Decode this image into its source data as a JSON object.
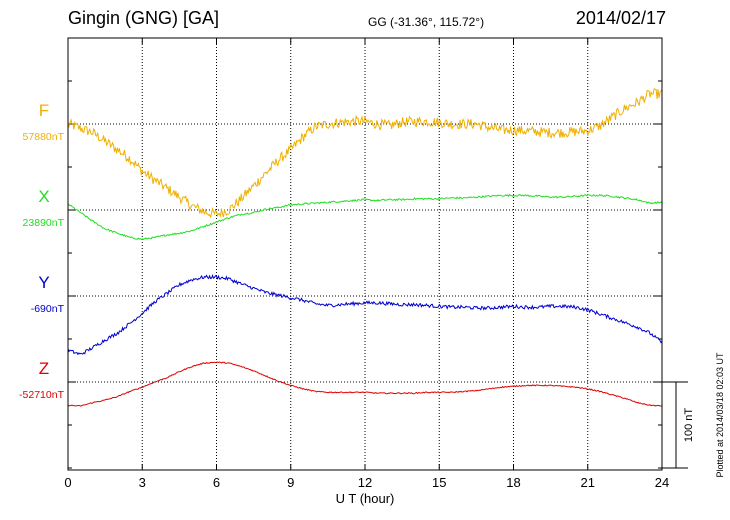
{
  "header": {
    "station": "Gingin (GNG)  [GA]",
    "coords": "GG (-31.36°, 115.72°)",
    "date": "2014/02/17"
  },
  "plotted_note": "Plotted at 2014/03/18 02:03 UT",
  "colors": {
    "F": "#f0b000",
    "X": "#20e020",
    "Y": "#0000d0",
    "Z": "#e00000"
  },
  "chart_data": {
    "type": "line",
    "xlabel": "U T (hour)",
    "xlim": [
      0,
      24
    ],
    "x_ticks": [
      "0",
      "3",
      "6",
      "9",
      "12",
      "15",
      "18",
      "21",
      "24"
    ],
    "scale_bar": {
      "label": "100 nT",
      "value_nT": 100
    },
    "grid": true,
    "series": [
      {
        "name": "F",
        "baseline_label": "57880nT",
        "baseline_nT": 57880,
        "x": [
          0,
          0.5,
          1,
          1.5,
          2,
          2.5,
          3,
          3.5,
          4,
          4.5,
          5,
          5.5,
          6,
          6.5,
          7,
          7.5,
          8,
          8.5,
          9,
          9.5,
          10,
          10.5,
          11,
          11.5,
          12,
          12.5,
          13,
          13.5,
          14,
          14.5,
          15,
          15.5,
          16,
          16.5,
          17,
          17.5,
          18,
          18.5,
          19,
          19.5,
          20,
          20.5,
          21,
          21.5,
          22,
          22.5,
          23,
          23.5,
          24
        ],
        "y": [
          57880,
          57875,
          57870,
          57860,
          57850,
          57840,
          57825,
          57815,
          57805,
          57795,
          57785,
          57778,
          57775,
          57780,
          57793,
          57808,
          57823,
          57838,
          57850,
          57865,
          57877,
          57880,
          57882,
          57883,
          57883,
          57880,
          57878,
          57882,
          57883,
          57883,
          57882,
          57880,
          57880,
          57880,
          57876,
          57873,
          57873,
          57872,
          57871,
          57870,
          57870,
          57871,
          57872,
          57878,
          57888,
          57898,
          57905,
          57915,
          57915
        ],
        "noise": 6
      },
      {
        "name": "X",
        "baseline_label": "23890nT",
        "baseline_nT": 23890,
        "x": [
          0,
          0.5,
          1,
          1.5,
          2,
          2.5,
          3,
          3.5,
          4,
          4.5,
          5,
          5.5,
          6,
          6.5,
          7,
          7.5,
          8,
          8.5,
          9,
          9.5,
          10,
          10.5,
          11,
          11.5,
          12,
          12.5,
          13,
          13.5,
          14,
          14.5,
          15,
          15.5,
          16,
          16.5,
          17,
          17.5,
          18,
          18.5,
          19,
          19.5,
          20,
          20.5,
          21,
          21.5,
          22,
          22.5,
          23,
          23.5,
          24
        ],
        "y": [
          23897,
          23887,
          23877,
          23868,
          23863,
          23858,
          23856,
          23858,
          23861,
          23863,
          23866,
          23871,
          23876,
          23881,
          23885,
          23887,
          23891,
          23893,
          23896,
          23897,
          23898,
          23899,
          23900,
          23901,
          23902,
          23901,
          23902,
          23902,
          23903,
          23903,
          23903,
          23904,
          23904,
          23905,
          23906,
          23907,
          23907,
          23907,
          23906,
          23905,
          23905,
          23906,
          23907,
          23907,
          23906,
          23904,
          23902,
          23898,
          23899
        ],
        "noise": 1
      },
      {
        "name": "Y",
        "baseline_label": "-690nT",
        "baseline_nT": -690,
        "x": [
          0,
          0.5,
          1,
          1.5,
          2,
          2.5,
          3,
          3.5,
          4,
          4.5,
          5,
          5.5,
          6,
          6.5,
          7,
          7.5,
          8,
          8.5,
          9,
          9.5,
          10,
          10.5,
          11,
          11.5,
          12,
          12.5,
          13,
          13.5,
          14,
          14.5,
          15,
          15.5,
          16,
          16.5,
          17,
          17.5,
          18,
          18.5,
          19,
          19.5,
          20,
          20.5,
          21,
          21.5,
          22,
          22.5,
          23,
          23.5,
          24
        ],
        "y": [
          -753,
          -758,
          -750,
          -741,
          -733,
          -722,
          -710,
          -697,
          -687,
          -677,
          -671,
          -668,
          -668,
          -670,
          -676,
          -681,
          -686,
          -689,
          -692,
          -695,
          -699,
          -701,
          -700,
          -699,
          -698,
          -698,
          -699,
          -700,
          -700,
          -701,
          -702,
          -703,
          -703,
          -704,
          -704,
          -703,
          -702,
          -703,
          -703,
          -702,
          -702,
          -703,
          -706,
          -711,
          -716,
          -721,
          -726,
          -733,
          -744
        ],
        "noise": 2
      },
      {
        "name": "Z",
        "baseline_label": "-52710nT",
        "baseline_nT": -52710,
        "x": [
          0,
          0.5,
          1,
          1.5,
          2,
          2.5,
          3,
          3.5,
          4,
          4.5,
          5,
          5.5,
          6,
          6.5,
          7,
          7.5,
          8,
          8.5,
          9,
          9.5,
          10,
          10.5,
          11,
          11.5,
          12,
          12.5,
          13,
          13.5,
          14,
          14.5,
          15,
          15.5,
          16,
          16.5,
          17,
          17.5,
          18,
          18.5,
          19,
          19.5,
          20,
          20.5,
          21,
          21.5,
          22,
          22.5,
          23,
          23.5,
          24
        ],
        "y": [
          -52737,
          -52738,
          -52734,
          -52731,
          -52727,
          -52721,
          -52716,
          -52710,
          -52705,
          -52698,
          -52692,
          -52688,
          -52687,
          -52688,
          -52692,
          -52697,
          -52703,
          -52709,
          -52714,
          -52718,
          -52721,
          -52722,
          -52722,
          -52722,
          -52722,
          -52723,
          -52723,
          -52723,
          -52723,
          -52722,
          -52722,
          -52722,
          -52721,
          -52720,
          -52718,
          -52716,
          -52715,
          -52714,
          -52714,
          -52714,
          -52715,
          -52716,
          -52718,
          -52721,
          -52725,
          -52729,
          -52734,
          -52737,
          -52738
        ],
        "noise": 0.6
      }
    ]
  }
}
